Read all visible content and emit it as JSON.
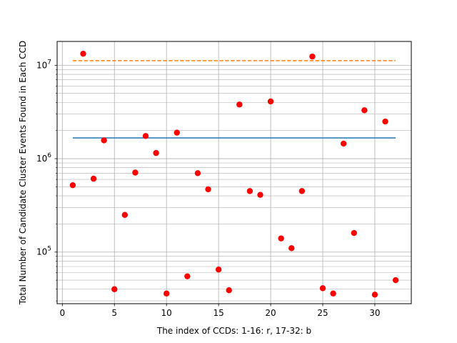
{
  "chart_data": {
    "type": "scatter",
    "title": "",
    "xlabel": "The index of CCDs: 1-16: r, 17-32: b",
    "ylabel": "Total Number of Candidate Cluster Events Found in Each CCD",
    "xlim": [
      -0.5,
      33.5
    ],
    "ylim": [
      28000,
      18000000
    ],
    "yscale": "log",
    "grid": true,
    "xticks": [
      0,
      5,
      10,
      15,
      20,
      25,
      30
    ],
    "yticks": [
      {
        "value": 100000,
        "base": "10",
        "exp": "5"
      },
      {
        "value": 1000000,
        "base": "10",
        "exp": "6"
      },
      {
        "value": 10000000,
        "base": "10",
        "exp": "7"
      }
    ],
    "points": {
      "color": "#ff0000",
      "x": [
        1,
        2,
        3,
        4,
        5,
        6,
        7,
        8,
        9,
        10,
        11,
        12,
        13,
        14,
        15,
        16,
        17,
        18,
        19,
        20,
        21,
        22,
        23,
        24,
        25,
        26,
        27,
        28,
        29,
        30,
        31,
        32
      ],
      "y": [
        520000,
        13300000,
        610000,
        1570000,
        40000,
        250000,
        710000,
        1750000,
        1150000,
        36000,
        1900000,
        55000,
        700000,
        470000,
        65000,
        39000,
        3800000,
        450000,
        410000,
        4100000,
        140000,
        110000,
        450000,
        12400000,
        41000,
        36000,
        1450000,
        160000,
        3300000,
        35000,
        2500000,
        50000
      ]
    },
    "lines": [
      {
        "style": "solid",
        "color": "#1f77b4",
        "x": [
          1,
          32
        ],
        "y": [
          1670000,
          1670000
        ]
      },
      {
        "style": "dashed",
        "color": "#ff7f0e",
        "x": [
          1,
          32
        ],
        "y": [
          11200000,
          11200000
        ]
      }
    ]
  }
}
